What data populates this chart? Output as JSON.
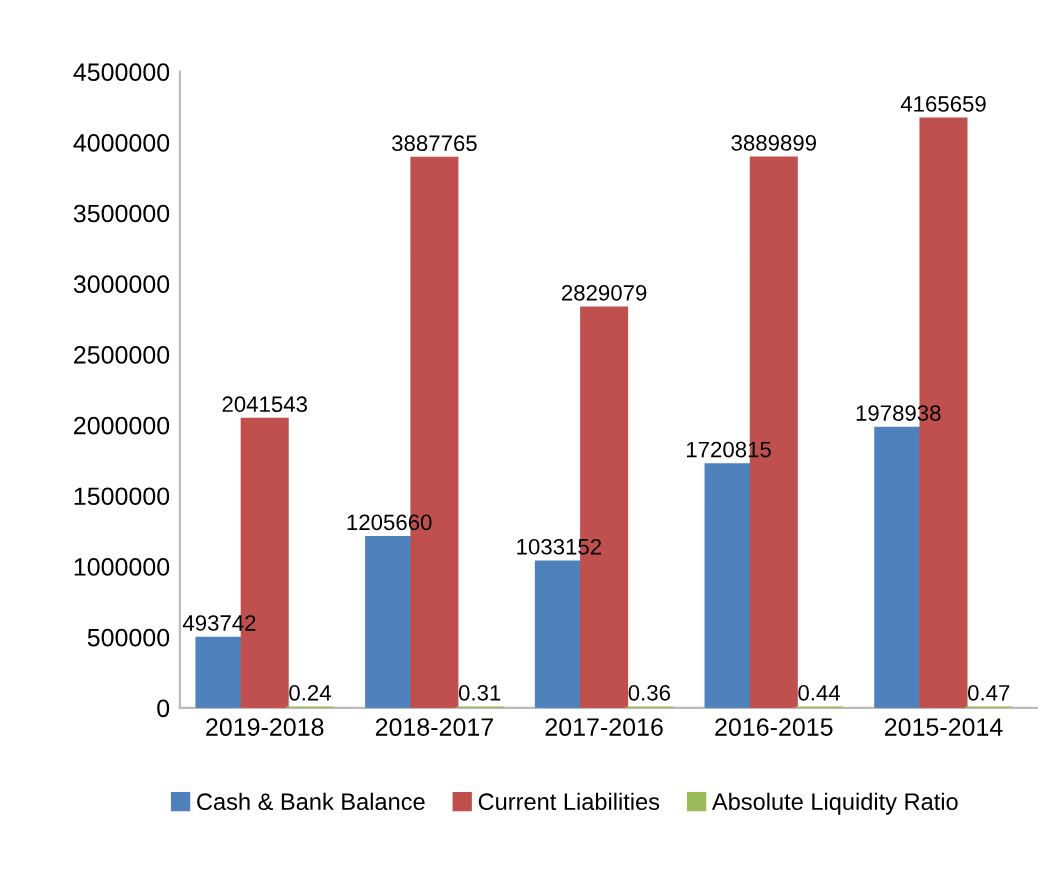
{
  "chart_data": {
    "type": "bar",
    "categories": [
      "2019-2018",
      "2018-2017",
      "2017-2016",
      "2016-2015",
      "2015-2014"
    ],
    "series": [
      {
        "name": "Cash & Bank Balance",
        "color": "#4f81bd",
        "values": [
          493742,
          1205660,
          1033152,
          1720815,
          1978938
        ]
      },
      {
        "name": "Current Liabilities",
        "color": "#c0504d",
        "values": [
          2041543,
          3887765,
          2829079,
          3889899,
          4165659
        ]
      },
      {
        "name": "Absolute Liquidity Ratio",
        "color": "#9bbb59",
        "values": [
          0.24,
          0.31,
          0.36,
          0.44,
          0.47
        ]
      }
    ],
    "ylim": [
      0,
      4500000
    ],
    "yticks": [
      0,
      500000,
      1000000,
      1500000,
      2000000,
      2500000,
      3000000,
      3500000,
      4000000,
      4500000
    ],
    "data_labels": true,
    "grid": false,
    "legend": "bottom"
  }
}
